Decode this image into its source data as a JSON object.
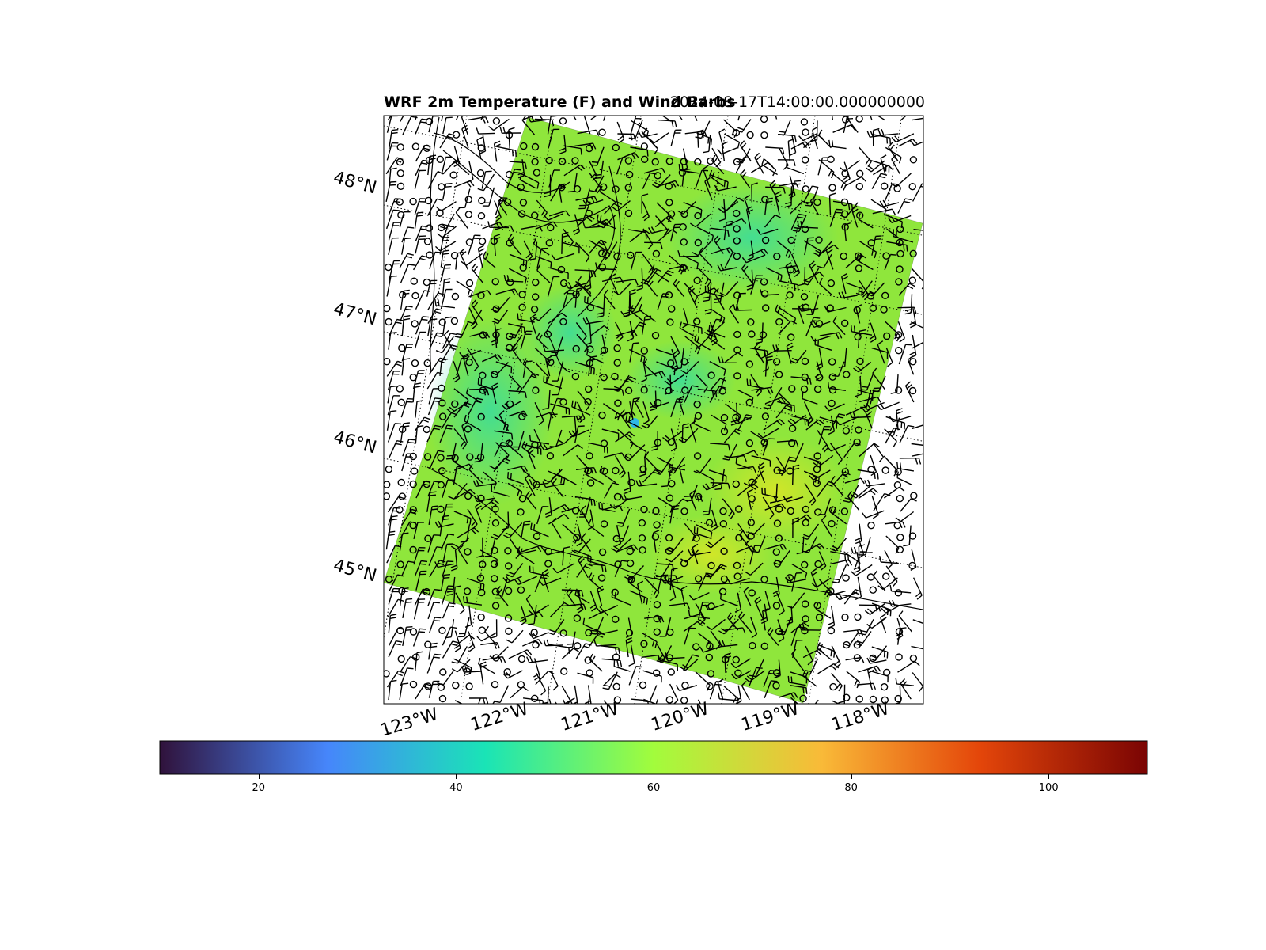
{
  "figure": {
    "title": "WRF 2m Temperature (F) and Wind Barbs",
    "valid_time": "2024-08-17T14:00:00.000000000"
  },
  "map": {
    "lat_labels": [
      "48°N",
      "47°N",
      "46°N",
      "45°N"
    ],
    "lon_labels": [
      "123°W",
      "122°W",
      "121°W",
      "120°W",
      "119°W",
      "118°W"
    ],
    "field_colors": {
      "base": "#8fe63c",
      "cool": "#3ee08a",
      "warm": "#c8ea2a",
      "cold_spot": "#2fb8e6"
    }
  },
  "colorbar": {
    "range": [
      10,
      110
    ],
    "tick_values": [
      20,
      40,
      60,
      80,
      100
    ],
    "tick_labels": [
      "20",
      "40",
      "60",
      "80",
      "100"
    ],
    "colormap": "turbo",
    "stops": [
      "#30123b",
      "#4686fb",
      "#1ae4b6",
      "#a2fc3c",
      "#f9ba38",
      "#e4460a",
      "#7a0403"
    ]
  }
}
